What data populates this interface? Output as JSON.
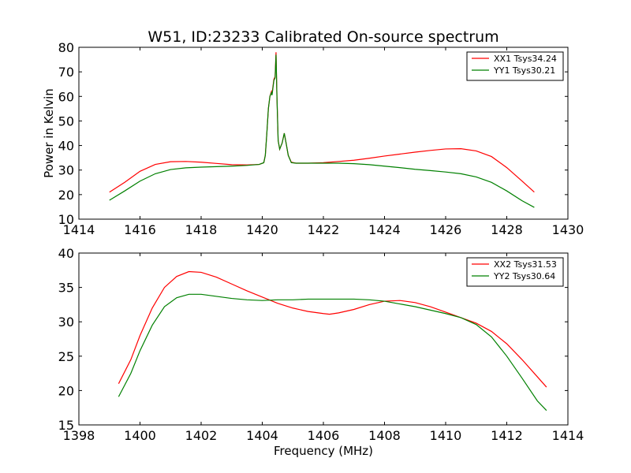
{
  "chart_data": {
    "title": "W51, ID:23233 Calibrated On-source spectrum",
    "panels": [
      {
        "type": "line",
        "ylabel": "Power in Kelvin",
        "xlabel": "",
        "xlim": [
          1414,
          1430
        ],
        "ylim": [
          10,
          80
        ],
        "xticks": [
          1414,
          1416,
          1418,
          1420,
          1422,
          1424,
          1426,
          1428,
          1430
        ],
        "yticks": [
          10,
          20,
          30,
          40,
          50,
          60,
          70,
          80
        ],
        "legend_position": "top-right",
        "series": [
          {
            "name": "XX1 Tsys34.24",
            "color": "#ff0000",
            "points": [
              [
                1415.0,
                21.0
              ],
              [
                1415.5,
                25.0
              ],
              [
                1416.0,
                29.5
              ],
              [
                1416.5,
                32.3
              ],
              [
                1417.0,
                33.4
              ],
              [
                1417.5,
                33.5
              ],
              [
                1418.0,
                33.2
              ],
              [
                1418.5,
                32.7
              ],
              [
                1419.0,
                32.2
              ],
              [
                1419.5,
                32.1
              ],
              [
                1419.9,
                32.3
              ],
              [
                1420.05,
                33.0
              ],
              [
                1420.1,
                36.0
              ],
              [
                1420.15,
                45.0
              ],
              [
                1420.2,
                55.0
              ],
              [
                1420.25,
                60.0
              ],
              [
                1420.3,
                62.0
              ],
              [
                1420.32,
                61.0
              ],
              [
                1420.35,
                64.0
              ],
              [
                1420.38,
                67.0
              ],
              [
                1420.42,
                68.0
              ],
              [
                1420.45,
                78.0
              ],
              [
                1420.48,
                60.0
              ],
              [
                1420.52,
                42.0
              ],
              [
                1420.57,
                38.5
              ],
              [
                1420.65,
                41.0
              ],
              [
                1420.72,
                45.0
              ],
              [
                1420.78,
                41.0
              ],
              [
                1420.85,
                36.0
              ],
              [
                1420.95,
                33.2
              ],
              [
                1421.1,
                32.8
              ],
              [
                1421.5,
                32.8
              ],
              [
                1422.0,
                33.0
              ],
              [
                1422.5,
                33.5
              ],
              [
                1423.0,
                34.0
              ],
              [
                1423.5,
                34.8
              ],
              [
                1424.0,
                35.7
              ],
              [
                1424.5,
                36.5
              ],
              [
                1425.0,
                37.3
              ],
              [
                1425.5,
                38.0
              ],
              [
                1426.0,
                38.6
              ],
              [
                1426.5,
                38.7
              ],
              [
                1427.0,
                37.8
              ],
              [
                1427.5,
                35.5
              ],
              [
                1428.0,
                31.0
              ],
              [
                1428.5,
                25.5
              ],
              [
                1428.9,
                21.0
              ]
            ]
          },
          {
            "name": "YY1 Tsys30.21",
            "color": "#008000",
            "points": [
              [
                1415.0,
                17.7
              ],
              [
                1415.5,
                21.5
              ],
              [
                1416.0,
                25.5
              ],
              [
                1416.5,
                28.5
              ],
              [
                1417.0,
                30.2
              ],
              [
                1417.5,
                30.9
              ],
              [
                1418.0,
                31.2
              ],
              [
                1418.5,
                31.4
              ],
              [
                1419.0,
                31.6
              ],
              [
                1419.5,
                31.9
              ],
              [
                1419.9,
                32.3
              ],
              [
                1420.05,
                33.0
              ],
              [
                1420.1,
                36.0
              ],
              [
                1420.15,
                45.0
              ],
              [
                1420.2,
                55.0
              ],
              [
                1420.25,
                60.0
              ],
              [
                1420.3,
                61.5
              ],
              [
                1420.32,
                60.5
              ],
              [
                1420.35,
                63.5
              ],
              [
                1420.38,
                66.5
              ],
              [
                1420.42,
                67.5
              ],
              [
                1420.45,
                77.0
              ],
              [
                1420.48,
                60.0
              ],
              [
                1420.52,
                42.0
              ],
              [
                1420.57,
                38.5
              ],
              [
                1420.65,
                41.0
              ],
              [
                1420.72,
                45.0
              ],
              [
                1420.78,
                41.0
              ],
              [
                1420.85,
                36.0
              ],
              [
                1420.95,
                33.0
              ],
              [
                1421.1,
                32.8
              ],
              [
                1421.5,
                32.8
              ],
              [
                1422.0,
                32.8
              ],
              [
                1422.5,
                32.8
              ],
              [
                1423.0,
                32.6
              ],
              [
                1423.5,
                32.2
              ],
              [
                1424.0,
                31.6
              ],
              [
                1424.5,
                31.0
              ],
              [
                1425.0,
                30.3
              ],
              [
                1425.5,
                29.8
              ],
              [
                1426.0,
                29.2
              ],
              [
                1426.5,
                28.5
              ],
              [
                1427.0,
                27.2
              ],
              [
                1427.5,
                25.0
              ],
              [
                1428.0,
                21.5
              ],
              [
                1428.5,
                17.5
              ],
              [
                1428.9,
                14.8
              ]
            ]
          }
        ]
      },
      {
        "type": "line",
        "ylabel": "",
        "xlabel": "Frequency (MHz)",
        "xlim": [
          1398,
          1414
        ],
        "ylim": [
          15,
          40
        ],
        "xticks": [
          1398,
          1400,
          1402,
          1404,
          1406,
          1408,
          1410,
          1412,
          1414
        ],
        "yticks": [
          15,
          20,
          25,
          30,
          35,
          40
        ],
        "legend_position": "top-right",
        "series": [
          {
            "name": "XX2 Tsys31.53",
            "color": "#ff0000",
            "points": [
              [
                1399.3,
                21.0
              ],
              [
                1399.7,
                24.5
              ],
              [
                1400.0,
                28.0
              ],
              [
                1400.4,
                32.0
              ],
              [
                1400.8,
                35.0
              ],
              [
                1401.2,
                36.6
              ],
              [
                1401.6,
                37.3
              ],
              [
                1402.0,
                37.2
              ],
              [
                1402.5,
                36.5
              ],
              [
                1403.0,
                35.5
              ],
              [
                1403.5,
                34.5
              ],
              [
                1404.0,
                33.6
              ],
              [
                1404.5,
                32.7
              ],
              [
                1405.0,
                32.0
              ],
              [
                1405.5,
                31.5
              ],
              [
                1406.0,
                31.2
              ],
              [
                1406.2,
                31.1
              ],
              [
                1406.5,
                31.3
              ],
              [
                1407.0,
                31.8
              ],
              [
                1407.5,
                32.5
              ],
              [
                1408.0,
                33.0
              ],
              [
                1408.5,
                33.1
              ],
              [
                1409.0,
                32.8
              ],
              [
                1409.5,
                32.2
              ],
              [
                1410.0,
                31.4
              ],
              [
                1410.5,
                30.6
              ],
              [
                1411.0,
                29.8
              ],
              [
                1411.5,
                28.6
              ],
              [
                1412.0,
                26.8
              ],
              [
                1412.5,
                24.5
              ],
              [
                1413.0,
                22.0
              ],
              [
                1413.3,
                20.5
              ]
            ]
          },
          {
            "name": "YY2 Tsys30.64",
            "color": "#008000",
            "points": [
              [
                1399.3,
                19.1
              ],
              [
                1399.7,
                22.5
              ],
              [
                1400.0,
                25.8
              ],
              [
                1400.4,
                29.5
              ],
              [
                1400.8,
                32.2
              ],
              [
                1401.2,
                33.5
              ],
              [
                1401.6,
                34.0
              ],
              [
                1402.0,
                34.0
              ],
              [
                1402.5,
                33.7
              ],
              [
                1403.0,
                33.4
              ],
              [
                1403.5,
                33.2
              ],
              [
                1404.0,
                33.1
              ],
              [
                1404.5,
                33.2
              ],
              [
                1405.0,
                33.2
              ],
              [
                1405.5,
                33.3
              ],
              [
                1406.0,
                33.3
              ],
              [
                1406.5,
                33.3
              ],
              [
                1407.0,
                33.3
              ],
              [
                1407.5,
                33.2
              ],
              [
                1408.0,
                33.0
              ],
              [
                1408.5,
                32.6
              ],
              [
                1409.0,
                32.2
              ],
              [
                1409.5,
                31.7
              ],
              [
                1410.0,
                31.2
              ],
              [
                1410.5,
                30.6
              ],
              [
                1411.0,
                29.6
              ],
              [
                1411.5,
                27.8
              ],
              [
                1412.0,
                25.0
              ],
              [
                1412.5,
                21.8
              ],
              [
                1413.0,
                18.5
              ],
              [
                1413.3,
                17.1
              ]
            ]
          }
        ]
      }
    ]
  }
}
